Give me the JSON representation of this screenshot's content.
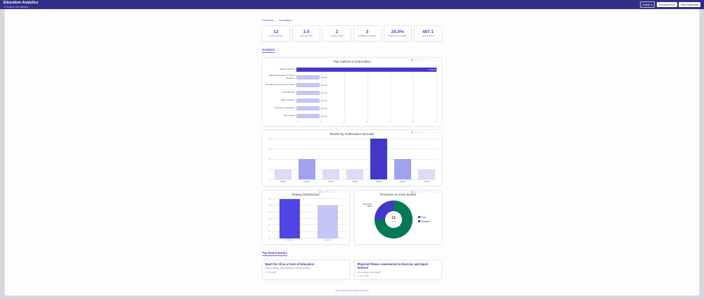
{
  "header": {
    "title": "Education Analytics",
    "subtitle": "12 books in this category",
    "select_value": "Default",
    "download_label": "Download PDF",
    "view_label": "View Dashboard"
  },
  "breadcrumb": {
    "home": "Overview",
    "separator": "→",
    "current": "Education"
  },
  "stats": [
    {
      "value": "12",
      "label": "Total Books"
    },
    {
      "value": "3.5",
      "label": "Avg Rating"
    },
    {
      "value": "2",
      "label": "Languages"
    },
    {
      "value": "3",
      "label": "Premium Books"
    },
    {
      "value": "25.0%",
      "label": "Premium Share"
    },
    {
      "value": "487.1",
      "label": "Avg Pages"
    }
  ],
  "sections": {
    "analysis": "Analysis",
    "top_rated": "Top Rated Books"
  },
  "modebar_icons": [
    {
      "name": "camera-icon",
      "glyph": "▣"
    },
    {
      "name": "zoom-icon",
      "glyph": "◎"
    },
    {
      "name": "pan-icon",
      "glyph": "✛"
    },
    {
      "name": "box-select-icon",
      "glyph": "▭"
    },
    {
      "name": "lasso-select-icon",
      "glyph": "○"
    },
    {
      "name": "zoom-in-icon",
      "glyph": "+"
    },
    {
      "name": "zoom-out-icon",
      "glyph": "−"
    },
    {
      "name": "autoscale-icon",
      "glyph": "↔"
    },
    {
      "name": "reset-axes-icon",
      "glyph": "⌂"
    },
    {
      "name": "plotly-logo-icon",
      "glyph": "≈"
    }
  ],
  "chart_data": [
    {
      "type": "bar",
      "orientation": "horizontal",
      "title": "Top Authors in Education",
      "categories": [
        "Various Authors",
        "World Federation of Sports Medicine",
        "Australian Sports Commission",
        "Jack Wilmore",
        "Brian Sharkey",
        "Rosemary Thompson",
        "John Carter"
      ],
      "values": [
        6,
        1,
        1,
        1,
        1,
        1,
        1
      ],
      "annotations": [
        "6 books",
        "1 books",
        "1 books",
        "1 books",
        "1 books",
        "1 books",
        "1 books"
      ],
      "colors": [
        "#4338ca",
        "#c3c5f5",
        "#c3c5f5",
        "#c3c5f5",
        "#c3c5f5",
        "#c3c5f5",
        "#c3c5f5"
      ],
      "xlim": [
        0,
        6
      ],
      "xticks": [
        0,
        1,
        2,
        3,
        4,
        5,
        6
      ],
      "xlabel": "",
      "ylabel": "",
      "grid": true
    },
    {
      "type": "bar",
      "title": "Books by Publication Decade",
      "categories": [
        "1950s",
        "1960s",
        "1970s",
        "1980s",
        "1990s",
        "2000s",
        "2010s"
      ],
      "values": [
        1,
        2,
        1,
        1,
        4,
        2,
        1
      ],
      "colors": [
        "#dbdcf8",
        "#9fa3ef",
        "#dbdcf8",
        "#dbdcf8",
        "#4338ca",
        "#9fa3ef",
        "#dbdcf8"
      ],
      "ylim": [
        0,
        4
      ],
      "yticks": [
        0,
        1,
        2,
        3,
        4
      ],
      "grid": true
    },
    {
      "type": "bar",
      "title": "Rating Distribution",
      "categories": [
        "3.5–4.0",
        "4.0–4.5"
      ],
      "values": [
        6,
        5
      ],
      "colors": [
        "#4f46e5",
        "#c3c5f5"
      ],
      "ylim": [
        0,
        6
      ],
      "yticks": [
        0,
        1,
        2,
        3,
        4,
        5,
        6
      ],
      "grid": true
    },
    {
      "type": "pie",
      "title": "Premium vs Free Books",
      "hole": true,
      "slices": [
        {
          "label": "Free",
          "value": 9,
          "percent": "75%",
          "color": "#047857"
        },
        {
          "label": "Premium",
          "value": 3,
          "percent": "25%",
          "color": "#4338ca"
        }
      ],
      "center": {
        "value": "12",
        "label": "total"
      },
      "legend_position": "right"
    }
  ],
  "books": [
    {
      "title": "Sport for All as a Form of Education",
      "authors": "Charles Bailey, Mike McNamee, Richard Bailey",
      "rating_text": "4.2 | 187"
    },
    {
      "title": "Physical Fitness Assessment in Exercise and Sport Science",
      "authors": "Peter Maud, Carl Foster",
      "rating_text": "4.1 | 156"
    }
  ],
  "footer": {
    "text": "Generated by Education Analytics"
  }
}
